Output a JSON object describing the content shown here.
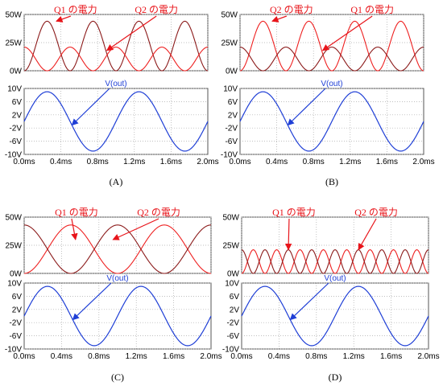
{
  "chart_data": [
    {
      "type": "line",
      "panel_label": "(A)",
      "x_ticks": [
        "0.0ms",
        "0.4ms",
        "0.8ms",
        "1.2ms",
        "1.6ms",
        "2.0ms"
      ],
      "xlim": [
        0,
        2.0
      ],
      "power": {
        "y_ticks": [
          "50W",
          "25W",
          "0W"
        ],
        "ylim": [
          0,
          50
        ],
        "series": [
          {
            "name": "Q1 の電力",
            "color": "#8b1a1a",
            "formula": "full",
            "peak": 44,
            "phase": 0
          },
          {
            "name": "Q2 の電力",
            "color": "#ee2020",
            "formula": "full",
            "peak": 21,
            "phase": 2
          }
        ],
        "annotations": [
          {
            "text": "Q1 の電力",
            "x": 0.35,
            "y": 44
          },
          {
            "text": "Q2 の電力",
            "x": 0.9,
            "y": 18
          }
        ]
      },
      "vout": {
        "name": "V(out)",
        "color": "#1f3fd6",
        "y_ticks": [
          "10V",
          "6V",
          "2V",
          "-2V",
          "-6V",
          "-10V"
        ],
        "ylim": [
          -10,
          10
        ],
        "amplitude": 9,
        "period_ms": 1.0
      }
    },
    {
      "type": "line",
      "panel_label": "(B)",
      "x_ticks": [
        "0.0ms",
        "0.4ms",
        "0.8ms",
        "1.2ms",
        "1.6ms",
        "2.0ms"
      ],
      "xlim": [
        0,
        2.0
      ],
      "power": {
        "y_ticks": [
          "50W",
          "25W",
          "0W"
        ],
        "ylim": [
          0,
          50
        ],
        "series": [
          {
            "name": "Q1 の電力",
            "color": "#ee2020",
            "formula": "full",
            "peak": 44,
            "phase": 0
          },
          {
            "name": "Q2 の電力",
            "color": "#8b1a1a",
            "formula": "full",
            "peak": 21,
            "phase": 2
          }
        ],
        "annotations": [
          {
            "text": "Q2 の電力",
            "x": 0.35,
            "y": 44
          },
          {
            "text": "Q1 の電力",
            "x": 0.9,
            "y": 18
          }
        ]
      },
      "vout": {
        "name": "V(out)",
        "color": "#1f3fd6",
        "y_ticks": [
          "10V",
          "6V",
          "2V",
          "-2V",
          "-6V",
          "-10V"
        ],
        "ylim": [
          -10,
          10
        ],
        "amplitude": 9,
        "period_ms": 1.0
      }
    },
    {
      "type": "line",
      "panel_label": "(C)",
      "x_ticks": [
        "0.0ms",
        "0.4ms",
        "0.8ms",
        "1.2ms",
        "1.6ms",
        "2.0ms"
      ],
      "xlim": [
        0,
        2.0
      ],
      "power": {
        "y_ticks": [
          "50W",
          "25W",
          "0W"
        ],
        "ylim": [
          0,
          50
        ],
        "series": [
          {
            "name": "Q1 の電力",
            "color": "#ee2020",
            "formula": "half",
            "peak": 43,
            "phase": 0
          },
          {
            "name": "Q2 の電力",
            "color": "#8b1a1a",
            "formula": "half",
            "peak": 43,
            "phase": 1
          }
        ],
        "annotations": [
          {
            "text": "Q1 の電力",
            "x": 0.55,
            "y": 30
          },
          {
            "text": "Q2 の電力",
            "x": 0.95,
            "y": 30
          }
        ]
      },
      "vout": {
        "name": "V(out)",
        "color": "#1f3fd6",
        "y_ticks": [
          "10V",
          "6V",
          "2V",
          "-2V",
          "-6V",
          "-10V"
        ],
        "ylim": [
          -10,
          10
        ],
        "amplitude": 9,
        "period_ms": 1.0
      }
    },
    {
      "type": "line",
      "panel_label": "(D)",
      "x_ticks": [
        "0.0ms",
        "0.4ms",
        "0.8ms",
        "1.2ms",
        "1.6ms",
        "2.0ms"
      ],
      "xlim": [
        0,
        2.0
      ],
      "power": {
        "y_ticks": [
          "50W",
          "25W",
          "0W"
        ],
        "ylim": [
          0,
          50
        ],
        "series": [
          {
            "name": "Q1 の電力",
            "color": "#ee2020",
            "formula": "quad",
            "peak": 21,
            "phase": 0
          },
          {
            "name": "Q2 の電力",
            "color": "#8b1a1a",
            "formula": "quad",
            "peak": 21,
            "phase": 1
          }
        ],
        "annotations": [
          {
            "text": "Q1 の電力",
            "x": 0.5,
            "y": 21
          },
          {
            "text": "Q2 の電力",
            "x": 1.25,
            "y": 21
          }
        ]
      },
      "vout": {
        "name": "V(out)",
        "color": "#1f3fd6",
        "y_ticks": [
          "10V",
          "6V",
          "2V",
          "-2V",
          "-6V",
          "-10V"
        ],
        "ylim": [
          -10,
          10
        ],
        "amplitude": 9,
        "period_ms": 1.0
      }
    }
  ]
}
